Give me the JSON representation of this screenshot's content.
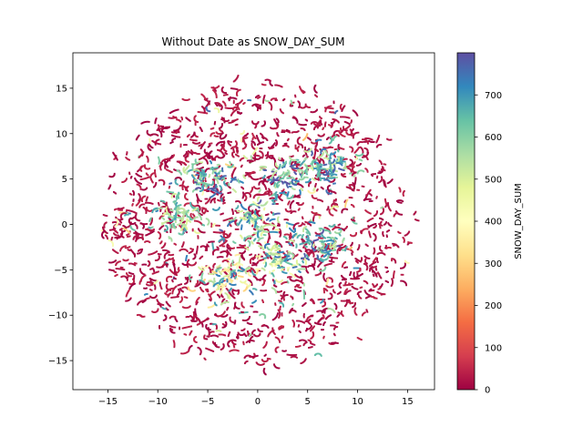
{
  "chart_data": {
    "type": "scatter",
    "title": "Without Date as SNOW_DAY_SUM",
    "xlabel": "",
    "ylabel": "",
    "xlim": [
      -18.5,
      17.7
    ],
    "ylim": [
      -18.2,
      18.9
    ],
    "x_ticks": [
      -15,
      -10,
      -5,
      0,
      5,
      10,
      15
    ],
    "y_ticks": [
      -15,
      -10,
      -5,
      0,
      5,
      10,
      15
    ],
    "grid": false,
    "colorbar": {
      "label": "SNOW_DAY_SUM",
      "min": 0,
      "max": 800,
      "ticks": [
        0,
        100,
        200,
        300,
        400,
        500,
        600,
        700
      ],
      "colormap": "Spectral",
      "stops": [
        "#9e0142",
        "#d53e4f",
        "#f46d43",
        "#fdae61",
        "#fee08b",
        "#ffffbf",
        "#e6f598",
        "#abdda4",
        "#66c2a5",
        "#3288bd",
        "#5e4fa2"
      ]
    },
    "distribution": {
      "shape": "roughly circular cloud of short curved strands",
      "center": [
        0,
        0
      ],
      "radius": 16.5,
      "dominant_value_range": [
        0,
        50
      ],
      "high_value_clusters": [
        {
          "x": -5,
          "y": 5,
          "value_range": [
            500,
            800
          ]
        },
        {
          "x": -3,
          "y": -6,
          "value_range": [
            300,
            750
          ]
        },
        {
          "x": 0,
          "y": 0.5,
          "value_range": [
            400,
            800
          ]
        },
        {
          "x": 3,
          "y": 5,
          "value_range": [
            500,
            800
          ]
        },
        {
          "x": 6,
          "y": -2,
          "value_range": [
            500,
            800
          ]
        },
        {
          "x": 7,
          "y": 6.5,
          "value_range": [
            500,
            800
          ]
        },
        {
          "x": -8,
          "y": 1,
          "value_range": [
            450,
            700
          ]
        },
        {
          "x": 2,
          "y": -4,
          "value_range": [
            400,
            750
          ]
        }
      ]
    }
  }
}
